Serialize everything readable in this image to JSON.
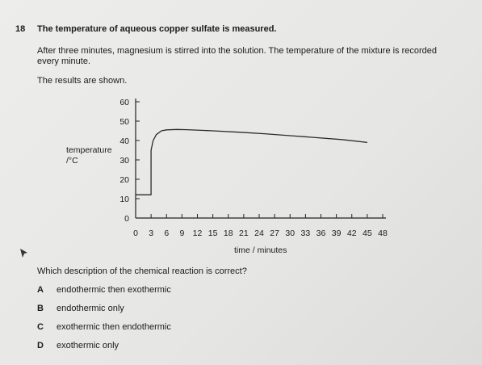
{
  "question": {
    "number": "18",
    "stem": "The temperature of aqueous copper sulfate is measured.",
    "paragraph": "After three minutes, magnesium is stirred into the solution. The temperature of the mixture is recorded every minute.",
    "results_intro": "The results are shown.",
    "prompt": "Which description of the chemical reaction is correct?",
    "options": [
      {
        "letter": "A",
        "text": "endothermic then exothermic"
      },
      {
        "letter": "B",
        "text": "endothermic only"
      },
      {
        "letter": "C",
        "text": "exothermic then endothermic"
      },
      {
        "letter": "D",
        "text": "exothermic only"
      }
    ]
  },
  "chart_data": {
    "type": "line",
    "ylabel_line1": "temperature",
    "ylabel_line2": "/°C",
    "xlabel": "time / minutes",
    "xlim": [
      0,
      48
    ],
    "ylim": [
      0,
      60
    ],
    "x_ticks": [
      0,
      3,
      6,
      9,
      12,
      15,
      18,
      21,
      24,
      27,
      30,
      33,
      36,
      39,
      42,
      45,
      48
    ],
    "y_ticks": [
      0,
      10,
      20,
      30,
      40,
      50,
      60
    ],
    "grid": false,
    "series": [
      {
        "x": [
          0,
          3,
          3,
          3.4,
          4,
          5,
          6,
          8,
          10,
          15,
          20,
          25,
          30,
          35,
          40,
          45
        ],
        "y": [
          12,
          12,
          35,
          40,
          43,
          45,
          45.5,
          45.7,
          45.6,
          45,
          44.3,
          43.5,
          42.5,
          41.5,
          40.5,
          39
        ]
      }
    ]
  }
}
